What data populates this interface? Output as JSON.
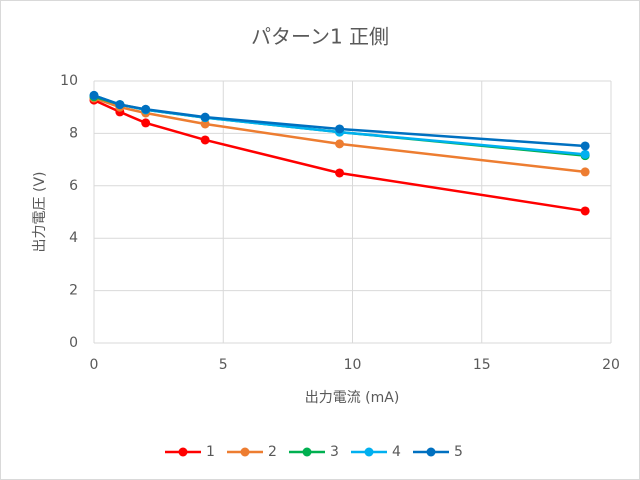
{
  "chart_data": {
    "type": "line",
    "title": "パターン1  正側",
    "x_label": "出力電流 (mA)",
    "y_label": "出力電圧 (V)",
    "x": [
      0,
      1,
      2,
      4.3,
      9.5,
      19
    ],
    "series": [
      {
        "name": "1",
        "color": "#ff0000",
        "values": [
          9.27,
          8.82,
          8.4,
          7.75,
          6.49,
          5.04
        ]
      },
      {
        "name": "2",
        "color": "#ed7d31",
        "values": [
          9.35,
          9.0,
          8.78,
          8.36,
          7.6,
          6.53
        ]
      },
      {
        "name": "3",
        "color": "#00b050",
        "values": [
          9.4,
          9.1,
          8.9,
          8.6,
          8.05,
          7.15
        ]
      },
      {
        "name": "4",
        "color": "#00b0f0",
        "values": [
          9.45,
          9.1,
          8.9,
          8.6,
          8.05,
          7.2
        ]
      },
      {
        "name": "5",
        "color": "#0070c0",
        "values": [
          9.45,
          9.1,
          8.92,
          8.62,
          8.17,
          7.52
        ]
      }
    ],
    "xlim": [
      0,
      20
    ],
    "xticks": [
      0,
      5,
      10,
      15,
      20
    ],
    "ylim": [
      0,
      10
    ],
    "yticks": [
      0,
      2,
      4,
      6,
      8,
      10
    ],
    "grid": true,
    "legend": "bottom"
  }
}
